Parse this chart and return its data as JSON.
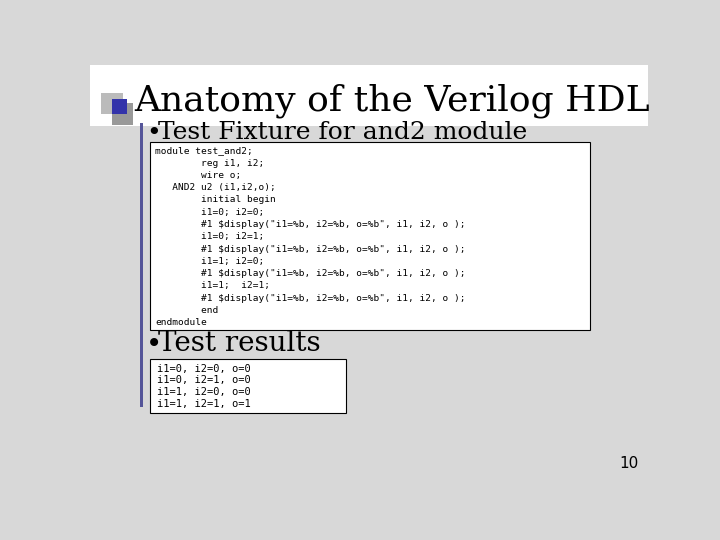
{
  "title": "Anatomy of the Verilog HDL",
  "title_fontsize": 26,
  "background_color": "#d8d8d8",
  "slide_bg": "#d8d8d8",
  "bullet1": "Test Fixture for and2 module",
  "bullet1_fontsize": 18,
  "bullet2": "Test results",
  "bullet2_fontsize": 20,
  "code_block1": [
    "module test_and2;",
    "        reg i1, i2;",
    "        wire o;",
    "   AND2 u2 (i1,i2,o);",
    "        initial begin",
    "        i1=0; i2=0;",
    "        #1 $display(\"i1=%b, i2=%b, o=%b\", i1, i2, o );",
    "        i1=0; i2=1;",
    "        #1 $display(\"i1=%b, i2=%b, o=%b\", i1, i2, o );",
    "        i1=1; i2=0;",
    "        #1 $display(\"i1=%b, i2=%b, o=%b\", i1, i2, o );",
    "        i1=1;  i2=1;",
    "        #1 $display(\"i1=%b, i2=%b, o=%b\", i1, i2, o );",
    "        end",
    "endmodule"
  ],
  "code_block2": [
    "i1=0, i2=0, o=0",
    "i1=0, i2=1, o=0",
    "i1=1, i2=0, o=0",
    "i1=1, i2=1, o=1"
  ],
  "page_number": "10",
  "accent_color": "#555599",
  "gray_square1": "#bbbbbb",
  "gray_square2": "#999999",
  "blue_square": "#3333aa"
}
